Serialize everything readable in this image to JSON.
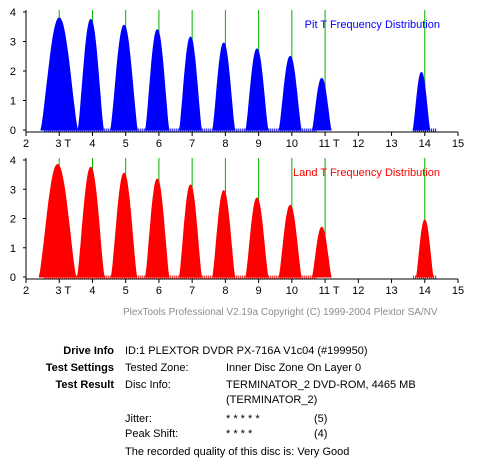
{
  "chart_data": [
    {
      "type": "area",
      "title": "Pit T Frequency Distribution",
      "color": "#0000ff",
      "xlim": [
        2,
        15
      ],
      "ylim": [
        0,
        4
      ],
      "x_ticks": [
        "2",
        "3 T",
        "4",
        "5",
        "6",
        "7",
        "8",
        "9",
        "10",
        "11 T",
        "12",
        "13",
        "14",
        "15"
      ],
      "y_ticks": [
        "0",
        "1",
        "2",
        "3",
        "4"
      ],
      "reference_lines": [
        3,
        4,
        5,
        6,
        7,
        8,
        9,
        10,
        11,
        14
      ],
      "series": [
        {
          "peaks": [
            {
              "center": 3.0,
              "height": 3.8,
              "halfwidth": 0.55
            },
            {
              "center": 3.95,
              "height": 3.75,
              "halfwidth": 0.38
            },
            {
              "center": 4.95,
              "height": 3.55,
              "halfwidth": 0.4
            },
            {
              "center": 5.95,
              "height": 3.4,
              "halfwidth": 0.35
            },
            {
              "center": 6.95,
              "height": 3.15,
              "halfwidth": 0.33
            },
            {
              "center": 7.95,
              "height": 2.95,
              "halfwidth": 0.33
            },
            {
              "center": 8.95,
              "height": 2.75,
              "halfwidth": 0.33
            },
            {
              "center": 9.95,
              "height": 2.5,
              "halfwidth": 0.33
            },
            {
              "center": 10.9,
              "height": 1.75,
              "halfwidth": 0.28
            },
            {
              "center": 13.9,
              "height": 1.95,
              "halfwidth": 0.25
            }
          ]
        }
      ]
    },
    {
      "type": "area",
      "title": "Land T Frequency Distribution",
      "color": "#ff0000",
      "xlim": [
        2,
        15
      ],
      "ylim": [
        0,
        4
      ],
      "x_ticks": [
        "2",
        "3 T",
        "4",
        "5",
        "6",
        "7",
        "8",
        "9",
        "10",
        "11 T",
        "12",
        "13",
        "14",
        "15"
      ],
      "y_ticks": [
        "0",
        "1",
        "2",
        "3",
        "4"
      ],
      "reference_lines": [
        3,
        4,
        5,
        6,
        7,
        8,
        9,
        10,
        11,
        14
      ],
      "series": [
        {
          "peaks": [
            {
              "center": 2.95,
              "height": 3.85,
              "halfwidth": 0.55
            },
            {
              "center": 3.95,
              "height": 3.75,
              "halfwidth": 0.4
            },
            {
              "center": 4.95,
              "height": 3.55,
              "halfwidth": 0.38
            },
            {
              "center": 5.95,
              "height": 3.35,
              "halfwidth": 0.35
            },
            {
              "center": 6.95,
              "height": 3.15,
              "halfwidth": 0.33
            },
            {
              "center": 7.95,
              "height": 2.95,
              "halfwidth": 0.33
            },
            {
              "center": 8.95,
              "height": 2.7,
              "halfwidth": 0.33
            },
            {
              "center": 9.95,
              "height": 2.45,
              "halfwidth": 0.33
            },
            {
              "center": 10.9,
              "height": 1.7,
              "halfwidth": 0.28
            },
            {
              "center": 14.0,
              "height": 1.95,
              "halfwidth": 0.25
            }
          ]
        }
      ]
    }
  ],
  "copyright": "PlexTools Professional V2.19a Copyright (C) 1999-2004 Plextor SA/NV",
  "info": {
    "drive_label": "Drive Info",
    "drive_value": "ID:1 PLEXTOR DVDR  PX-716A  V1c04  (#199950)",
    "settings_label": "Test Settings",
    "settings_key": "Tested Zone:",
    "settings_value": "Inner Disc Zone On Layer 0",
    "result_label": "Test Result",
    "disc_key": "Disc Info:",
    "disc_value_1": "TERMINATOR_2 DVD-ROM, 4465 MB",
    "disc_value_2": "(TERMINATOR_2)",
    "jitter_key": "Jitter:",
    "jitter_stars": "* * * * *",
    "jitter_score": "(5)",
    "peak_key": "Peak Shift:",
    "peak_stars": "* * * *",
    "peak_score": "(4)",
    "quality_text": "The recorded quality of this disc is: Very Good"
  }
}
